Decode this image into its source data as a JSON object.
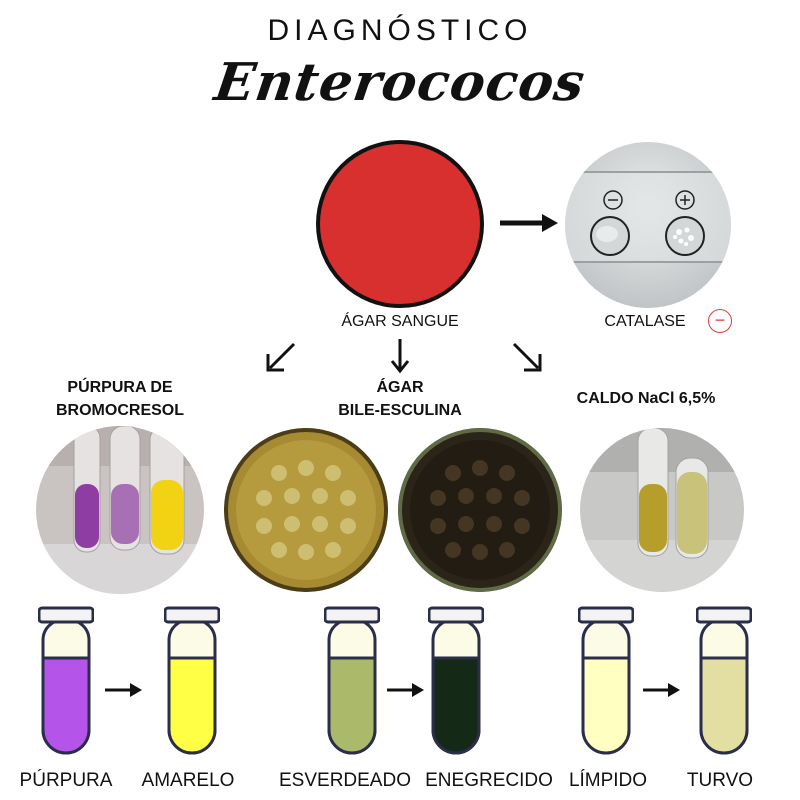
{
  "header": {
    "title": "DIAGNÓSTICO",
    "subtitle": "Enterococos"
  },
  "main": {
    "plate_label": "ÁGAR SANGUE",
    "catalase": {
      "label": "CATALASE",
      "result_symbol": "−",
      "neg_symbol": "−",
      "pos_symbol": "+"
    },
    "tests": [
      {
        "title_line1": "PÚRPURA DE",
        "title_line2": "BROMOCRESOL"
      },
      {
        "title_line1": "ÁGAR",
        "title_line2": "BILE-ESCULINA"
      },
      {
        "title_line1": "CALDO NaCl 6,5%",
        "title_line2": ""
      }
    ],
    "tubes": [
      {
        "label": "PÚRPURA",
        "color": "#b554e8"
      },
      {
        "label": "AMARELO",
        "color": "#ffff46"
      },
      {
        "label": "ESVERDEADO",
        "color": "#abb96a"
      },
      {
        "label": "ENEGRECIDO",
        "color": "#142a16"
      },
      {
        "label": "LÍMPIDO",
        "color": "#ffffc2"
      },
      {
        "label": "TURVO",
        "color": "#e3dfa3"
      }
    ]
  },
  "colors": {
    "blood_agar": "#d82f2f",
    "catalase_result": "#e23b3b"
  }
}
